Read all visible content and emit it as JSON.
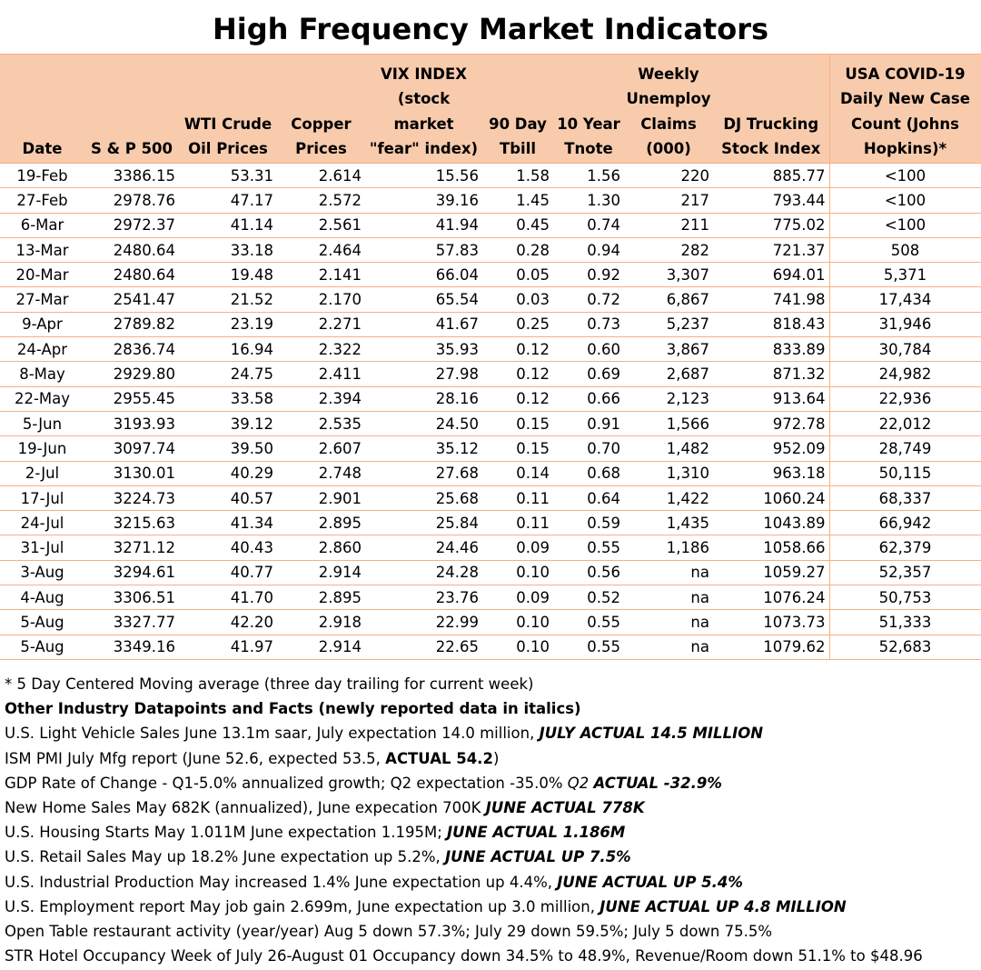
{
  "title": "High Frequency Market Indicators",
  "table": {
    "headers": [
      "Date",
      "S & P 500",
      "WTI Crude Oil Prices",
      "Copper Prices",
      "VIX INDEX (stock market \"fear\" index)",
      "90 Day Tbill",
      "10 Year Tnote",
      "Weekly Unemploy Claims (000)",
      "DJ Trucking Stock Index",
      "USA COVID-19 Daily New Case Count (Johns Hopkins)*"
    ],
    "rows": [
      [
        "19-Feb",
        "3386.15",
        "53.31",
        "2.614",
        "15.56",
        "1.58",
        "1.56",
        "220",
        "885.77",
        "<100"
      ],
      [
        "27-Feb",
        "2978.76",
        "47.17",
        "2.572",
        "39.16",
        "1.45",
        "1.30",
        "217",
        "793.44",
        "<100"
      ],
      [
        "6-Mar",
        "2972.37",
        "41.14",
        "2.561",
        "41.94",
        "0.45",
        "0.74",
        "211",
        "775.02",
        "<100"
      ],
      [
        "13-Mar",
        "2480.64",
        "33.18",
        "2.464",
        "57.83",
        "0.28",
        "0.94",
        "282",
        "721.37",
        "508"
      ],
      [
        "20-Mar",
        "2480.64",
        "19.48",
        "2.141",
        "66.04",
        "0.05",
        "0.92",
        "3,307",
        "694.01",
        "5,371"
      ],
      [
        "27-Mar",
        "2541.47",
        "21.52",
        "2.170",
        "65.54",
        "0.03",
        "0.72",
        "6,867",
        "741.98",
        "17,434"
      ],
      [
        "9-Apr",
        "2789.82",
        "23.19",
        "2.271",
        "41.67",
        "0.25",
        "0.73",
        "5,237",
        "818.43",
        "31,946"
      ],
      [
        "24-Apr",
        "2836.74",
        "16.94",
        "2.322",
        "35.93",
        "0.12",
        "0.60",
        "3,867",
        "833.89",
        "30,784"
      ],
      [
        "8-May",
        "2929.80",
        "24.75",
        "2.411",
        "27.98",
        "0.12",
        "0.69",
        "2,687",
        "871.32",
        "24,982"
      ],
      [
        "22-May",
        "2955.45",
        "33.58",
        "2.394",
        "28.16",
        "0.12",
        "0.66",
        "2,123",
        "913.64",
        "22,936"
      ],
      [
        "5-Jun",
        "3193.93",
        "39.12",
        "2.535",
        "24.50",
        "0.15",
        "0.91",
        "1,566",
        "972.78",
        "22,012"
      ],
      [
        "19-Jun",
        "3097.74",
        "39.50",
        "2.607",
        "35.12",
        "0.15",
        "0.70",
        "1,482",
        "952.09",
        "28,749"
      ],
      [
        "2-Jul",
        "3130.01",
        "40.29",
        "2.748",
        "27.68",
        "0.14",
        "0.68",
        "1,310",
        "963.18",
        "50,115"
      ],
      [
        "17-Jul",
        "3224.73",
        "40.57",
        "2.901",
        "25.68",
        "0.11",
        "0.64",
        "1,422",
        "1060.24",
        "68,337"
      ],
      [
        "24-Jul",
        "3215.63",
        "41.34",
        "2.895",
        "25.84",
        "0.11",
        "0.59",
        "1,435",
        "1043.89",
        "66,942"
      ],
      [
        "31-Jul",
        "3271.12",
        "40.43",
        "2.860",
        "24.46",
        "0.09",
        "0.55",
        "1,186",
        "1058.66",
        "62,379"
      ],
      [
        "3-Aug",
        "3294.61",
        "40.77",
        "2.914",
        "24.28",
        "0.10",
        "0.56",
        "na",
        "1059.27",
        "52,357"
      ],
      [
        "4-Aug",
        "3306.51",
        "41.70",
        "2.895",
        "23.76",
        "0.09",
        "0.52",
        "na",
        "1076.24",
        "50,753"
      ],
      [
        "5-Aug",
        "3327.77",
        "42.20",
        "2.918",
        "22.99",
        "0.10",
        "0.55",
        "na",
        "1073.73",
        "51,333"
      ],
      [
        "5-Aug",
        "3349.16",
        "41.97",
        "2.914",
        "22.65",
        "0.10",
        "0.55",
        "na",
        "1079.62",
        "52,683"
      ]
    ]
  },
  "notes": {
    "footnote": "* 5 Day Centered Moving average (three day trailing for current week)",
    "heading": "Other Industry Datapoints and Facts (newly reported data in italics)",
    "items": [
      {
        "text": "U.S. Light Vehicle Sales  June 13.1m saar, July expectation 14.0 million, ",
        "emph": "JULY ACTUAL 14.5 MILLION"
      },
      {
        "text": "ISM PMI July Mfg report (June 52.6, expected 53.5, ",
        "bold": "ACTUAL 54.2",
        "tail": ")"
      },
      {
        "text": "GDP Rate of Change - Q1-5.0% annualized growth; Q2 expectation -35.0% ",
        "ital": "Q2  ",
        "emph": "ACTUAL -32.9%"
      },
      {
        "text": "New Home Sales May 682K (annualized), June expecation 700K ",
        "emph": "JUNE ACTUAL 778K"
      },
      {
        "text": "U.S. Housing Starts May 1.011M June expectation 1.195M; ",
        "emph": "JUNE ACTUAL 1.186M"
      },
      {
        "text": "U.S. Retail Sales May up 18.2% June expectation up 5.2%, ",
        "emph": "JUNE ACTUAL UP 7.5%"
      },
      {
        "text": "U.S. Industrial Production May increased 1.4% June expectation up 4.4%, ",
        "emph": "JUNE ACTUAL UP 5.4%"
      },
      {
        "text": "U.S. Employment report May job gain 2.699m, June expectation up 3.0 million, ",
        "emph": "JUNE ACTUAL UP 4.8 MILLION"
      },
      {
        "text": "Open Table restaurant activity (year/year) Aug 5 down 57.3%; July 29 down 59.5%; July 5 down 75.5%"
      },
      {
        "text": "STR Hotel Occupancy Week of July 26-August 01  Occupancy down 34.5% to 48.9%, Revenue/Room down 51.1% to $48.96"
      }
    ]
  },
  "colors": {
    "header_fill": "#f8cbad",
    "border": "#f4b183"
  }
}
